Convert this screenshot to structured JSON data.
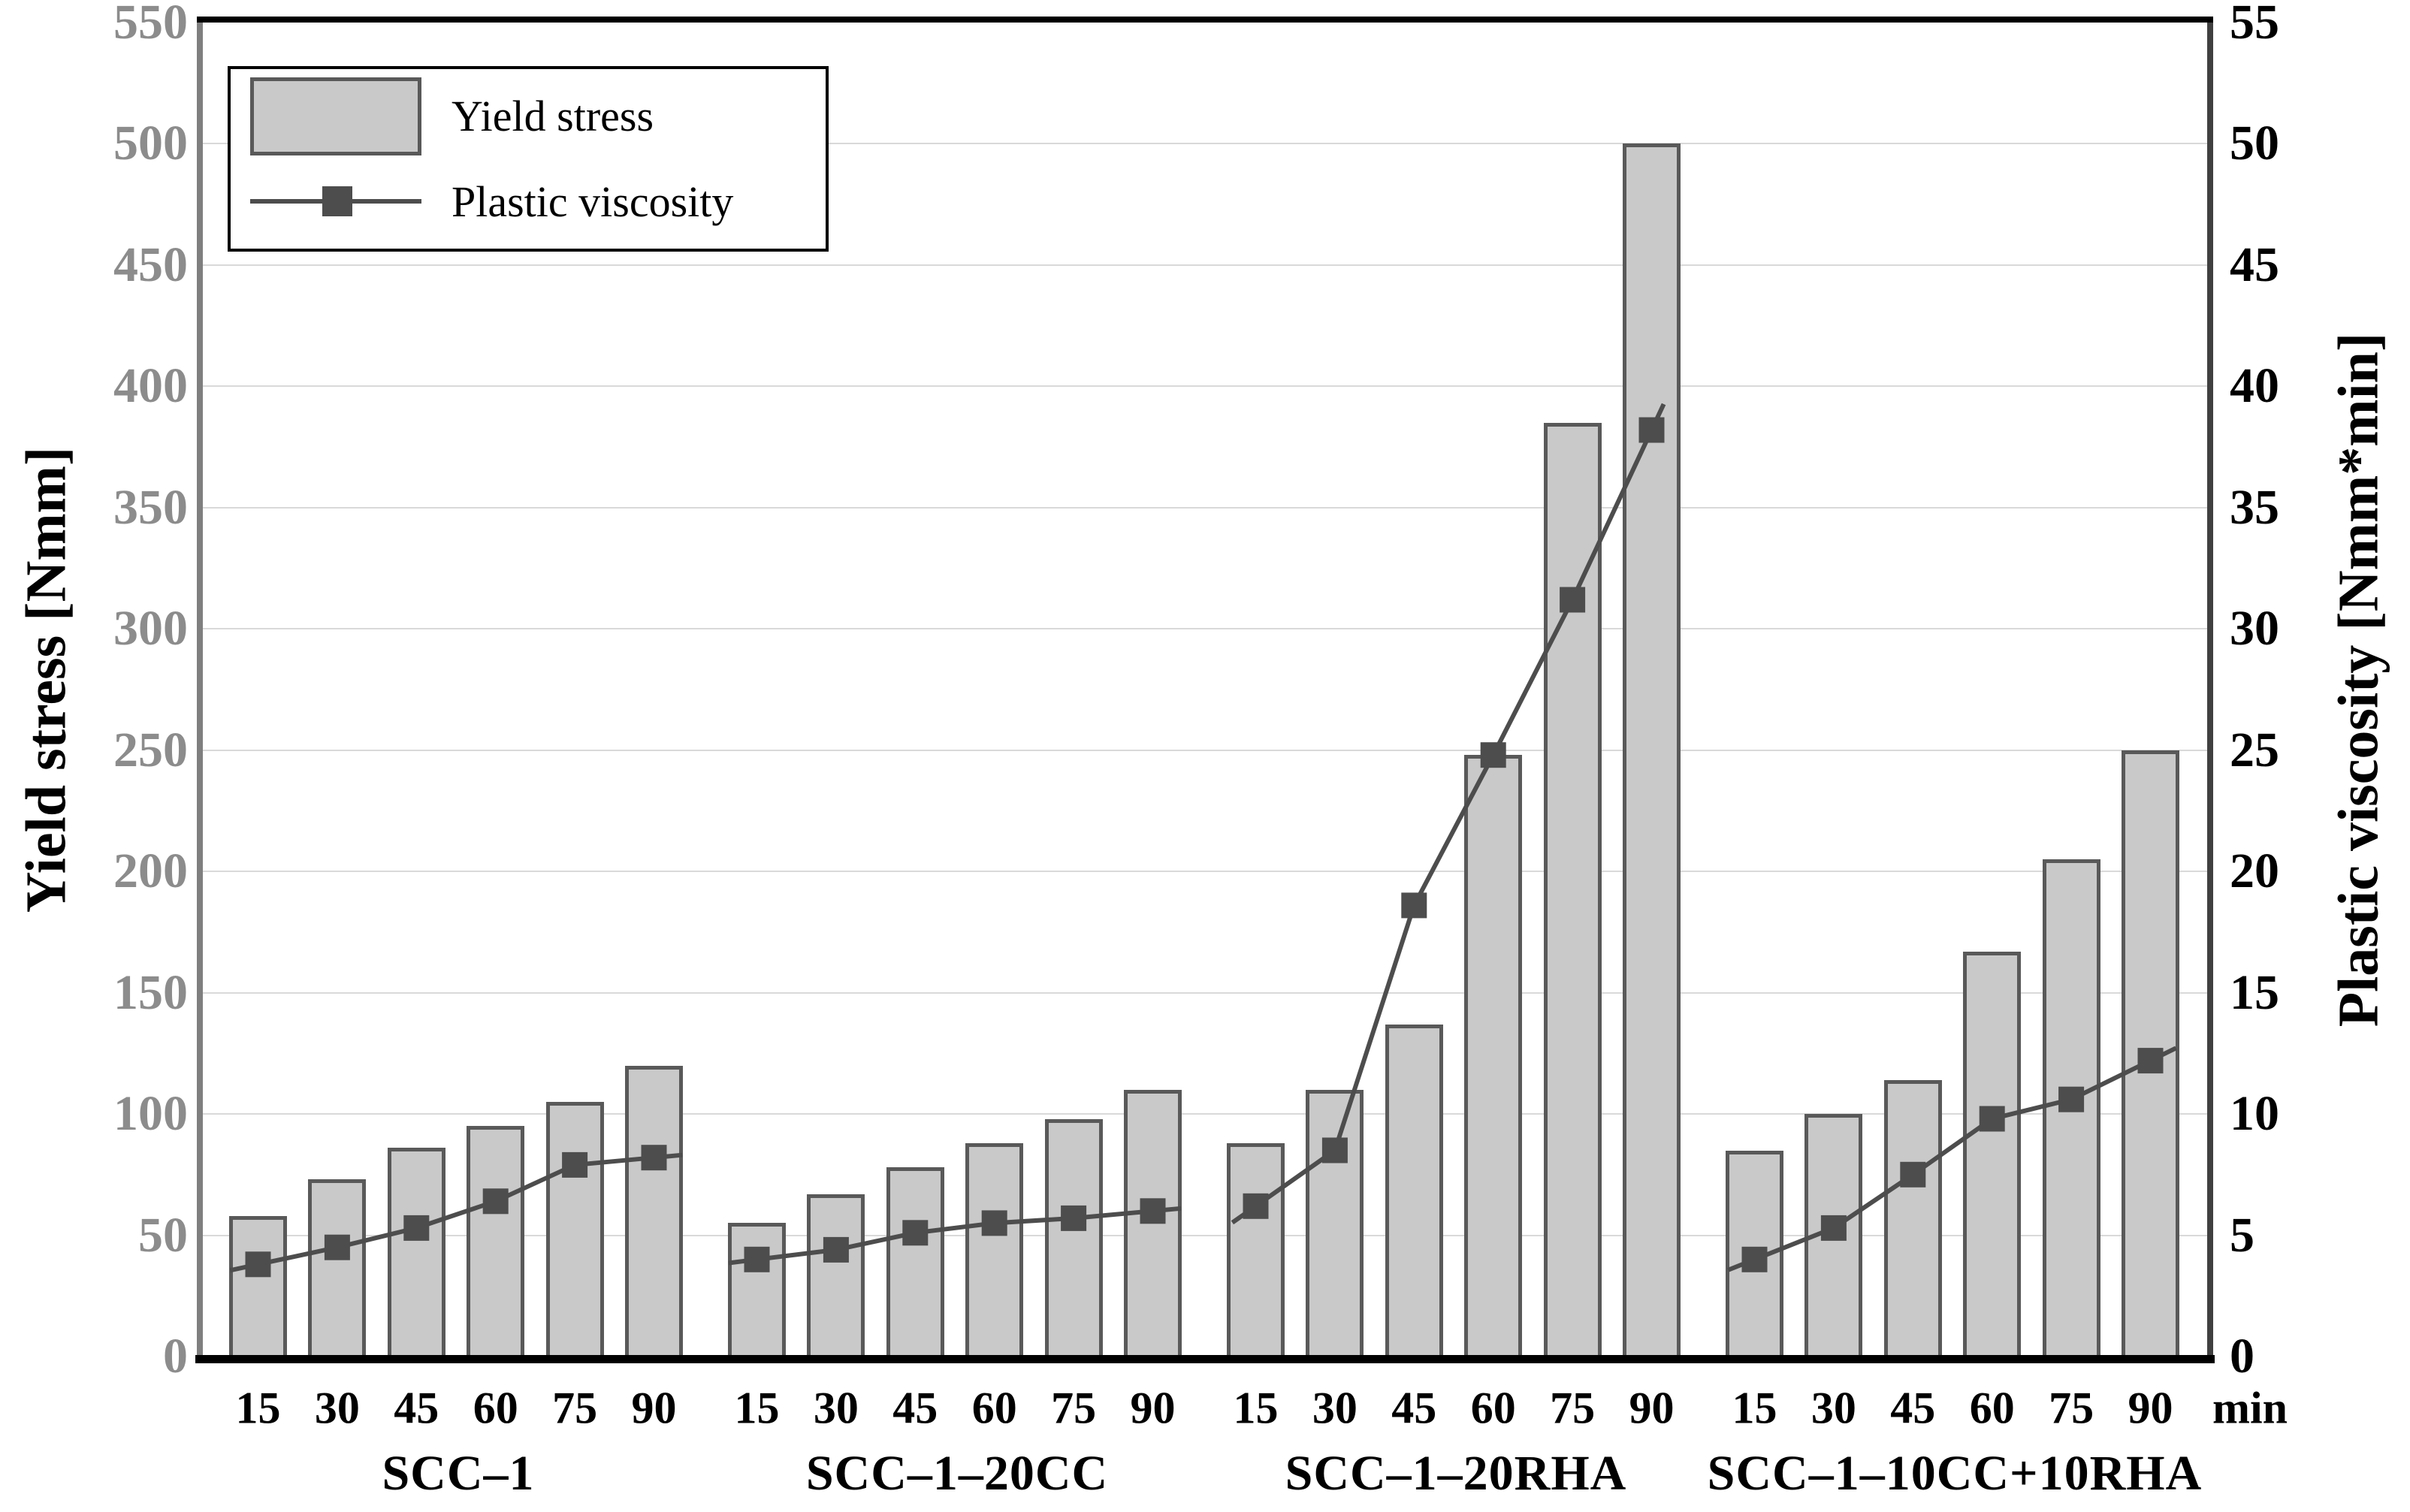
{
  "chart_data": {
    "type": "bar+line",
    "title": "",
    "legend": {
      "yield_stress_label": "Yield stress",
      "plastic_viscosity_label": "Plastic viscosity"
    },
    "left_axis": {
      "title": "Yield stress [Nmm]",
      "min": 0,
      "max": 550,
      "step": 50,
      "ticks": [
        "550",
        "500",
        "450",
        "400",
        "350",
        "300",
        "250",
        "200",
        "150",
        "100",
        "50",
        "0"
      ]
    },
    "right_axis": {
      "title": "Plastic viscosity [Nmm*min]",
      "min": 0,
      "max": 55,
      "step": 5,
      "ticks": [
        "55",
        "50",
        "45",
        "40",
        "35",
        "30",
        "25",
        "20",
        "15",
        "10",
        "5",
        "0"
      ]
    },
    "x_axis": {
      "times": [
        "15",
        "30",
        "45",
        "60",
        "75",
        "90"
      ],
      "unit_label": "min"
    },
    "grid": "horizontal",
    "legend_position": "top-left",
    "groups": [
      {
        "name": "SCC–1",
        "yield_stress": [
          58,
          73,
          86,
          95,
          105,
          120
        ],
        "plastic_viscosity": [
          3.8,
          4.5,
          5.3,
          6.4,
          7.9,
          8.2
        ]
      },
      {
        "name": "SCC–1–20CC",
        "yield_stress": [
          55,
          67,
          78,
          88,
          98,
          110
        ],
        "plastic_viscosity": [
          4.0,
          4.4,
          5.1,
          5.5,
          5.7,
          6.0
        ]
      },
      {
        "name": "SCC–1–20RHA",
        "yield_stress": [
          88,
          110,
          137,
          248,
          385,
          500
        ],
        "plastic_viscosity": [
          6.2,
          8.5,
          18.6,
          24.8,
          31.2,
          38.2
        ]
      },
      {
        "name": "SCC–1–10CC+10RHA",
        "yield_stress": [
          85,
          100,
          114,
          167,
          205,
          250
        ],
        "plastic_viscosity": [
          4.0,
          5.3,
          7.5,
          9.8,
          10.6,
          12.2
        ]
      }
    ],
    "colors": {
      "bar_fill": "#c9c9c9",
      "bar_border": "#595959",
      "line": "#4d4d4d",
      "marker": "#4d4d4d",
      "gridline": "#d9d9d9",
      "left_tick_text": "#8c8c8c",
      "right_tick_text": "#000000",
      "left_axis_line": "#7f7f7f",
      "right_axis_line": "#404040",
      "top_border": "#000000",
      "bottom_axis_line": "#000000"
    }
  }
}
